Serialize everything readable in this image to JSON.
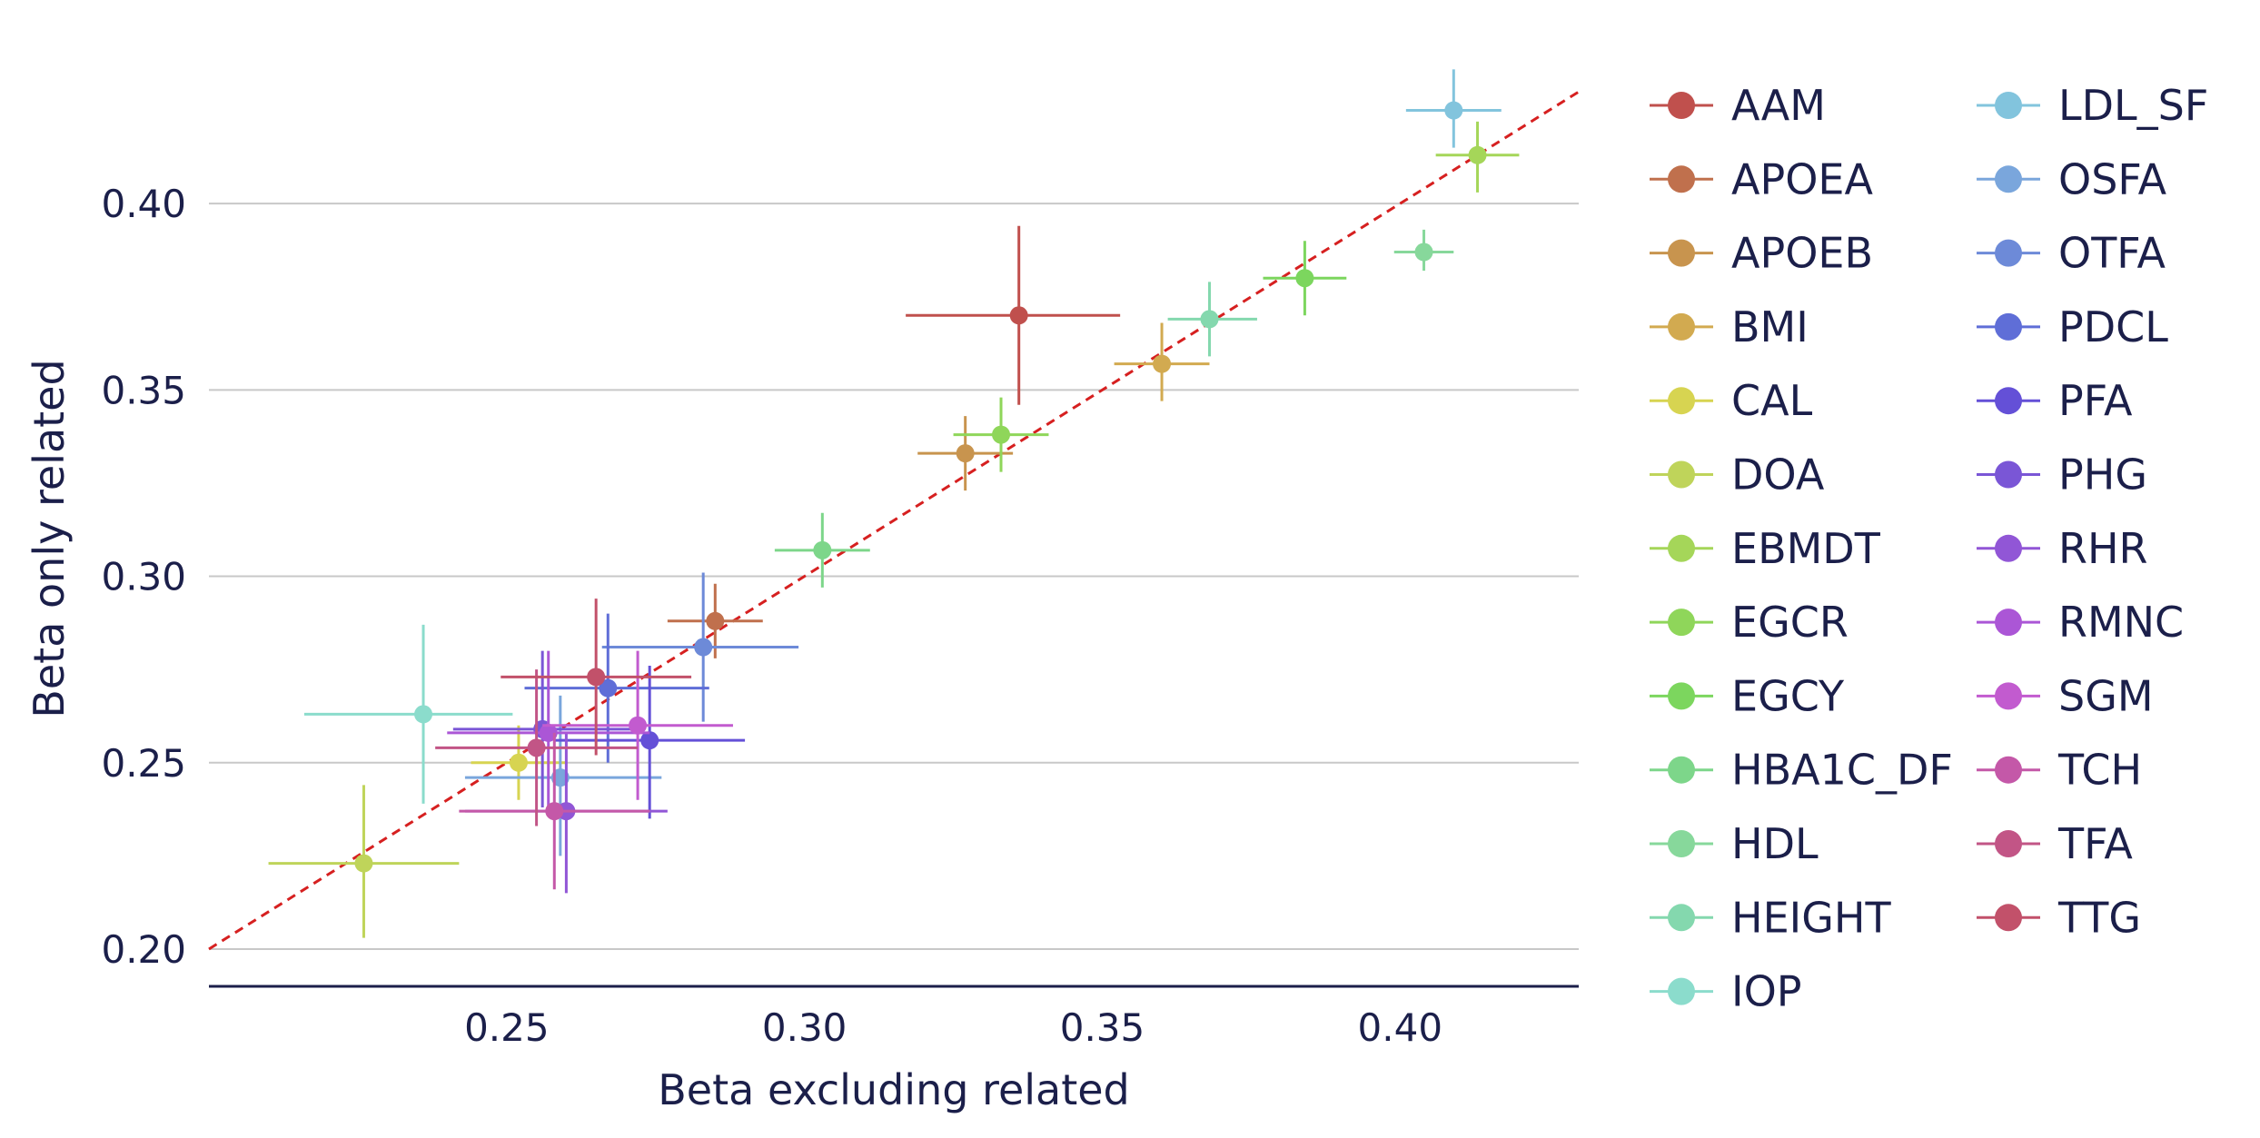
{
  "chart_data": {
    "type": "scatter",
    "title": "",
    "xlabel": "Beta excluding related",
    "ylabel": "Beta only related",
    "xlim": [
      0.2,
      0.43
    ],
    "ylim": [
      0.19,
      0.44
    ],
    "x_ticks": [
      0.25,
      0.3,
      0.35,
      0.4
    ],
    "x_tick_labels": [
      "0.25",
      "0.30",
      "0.35",
      "0.40"
    ],
    "y_ticks": [
      0.2,
      0.25,
      0.3,
      0.35,
      0.4
    ],
    "y_tick_labels": [
      "0.20",
      "0.25",
      "0.30",
      "0.35",
      "0.40"
    ],
    "grid": "horizontal",
    "legend_position": "right, two columns",
    "reference_line": {
      "style": "dashed",
      "color": "#d62020",
      "slope": 1,
      "intercept": 0
    },
    "series": [
      {
        "name": "AAM",
        "color": "#c0504d",
        "x": 0.336,
        "y": 0.37,
        "xerr": [
          0.317,
          0.353
        ],
        "yerr": [
          0.346,
          0.394
        ]
      },
      {
        "name": "APOEA",
        "color": "#c0704d",
        "x": 0.285,
        "y": 0.288,
        "xerr": [
          0.277,
          0.293
        ],
        "yerr": [
          0.278,
          0.298
        ]
      },
      {
        "name": "APOEB",
        "color": "#c8944e",
        "x": 0.327,
        "y": 0.333,
        "xerr": [
          0.319,
          0.335
        ],
        "yerr": [
          0.323,
          0.343
        ]
      },
      {
        "name": "BMI",
        "color": "#d2aa50",
        "x": 0.36,
        "y": 0.357,
        "xerr": [
          0.352,
          0.368
        ],
        "yerr": [
          0.347,
          0.368
        ]
      },
      {
        "name": "CAL",
        "color": "#d7d451",
        "x": 0.252,
        "y": 0.25,
        "xerr": [
          0.244,
          0.26
        ],
        "yerr": [
          0.24,
          0.26
        ]
      },
      {
        "name": "DOA",
        "color": "#bfd45a",
        "x": 0.226,
        "y": 0.223,
        "xerr": [
          0.21,
          0.242
        ],
        "yerr": [
          0.203,
          0.244
        ]
      },
      {
        "name": "EBMDT",
        "color": "#a5d659",
        "x": 0.413,
        "y": 0.413,
        "xerr": [
          0.406,
          0.42
        ],
        "yerr": [
          0.403,
          0.422
        ]
      },
      {
        "name": "EGCR",
        "color": "#8fd65a",
        "x": 0.333,
        "y": 0.338,
        "xerr": [
          0.325,
          0.341
        ],
        "yerr": [
          0.328,
          0.348
        ]
      },
      {
        "name": "EGCY",
        "color": "#7cd65e",
        "x": 0.384,
        "y": 0.38,
        "xerr": [
          0.377,
          0.391
        ],
        "yerr": [
          0.37,
          0.39
        ]
      },
      {
        "name": "HBA1C_DF",
        "color": "#7dd68a",
        "x": 0.303,
        "y": 0.307,
        "xerr": [
          0.295,
          0.311
        ],
        "yerr": [
          0.297,
          0.317
        ]
      },
      {
        "name": "HDL",
        "color": "#87d89b",
        "x": 0.404,
        "y": 0.387,
        "xerr": [
          0.399,
          0.409
        ],
        "yerr": [
          0.382,
          0.393
        ]
      },
      {
        "name": "HEIGHT",
        "color": "#84d8ae",
        "x": 0.368,
        "y": 0.369,
        "xerr": [
          0.361,
          0.376
        ],
        "yerr": [
          0.359,
          0.379
        ]
      },
      {
        "name": "IOP",
        "color": "#8bdccc",
        "x": 0.236,
        "y": 0.263,
        "xerr": [
          0.216,
          0.251
        ],
        "yerr": [
          0.239,
          0.287
        ]
      },
      {
        "name": "LDL_SF",
        "color": "#82c4dd",
        "x": 0.409,
        "y": 0.425,
        "xerr": [
          0.401,
          0.417
        ],
        "yerr": [
          0.415,
          0.436
        ]
      },
      {
        "name": "OSFA",
        "color": "#7aa6dc",
        "x": 0.259,
        "y": 0.246,
        "xerr": [
          0.243,
          0.276
        ],
        "yerr": [
          0.225,
          0.268
        ]
      },
      {
        "name": "OTFA",
        "color": "#6d8ad8",
        "x": 0.283,
        "y": 0.281,
        "xerr": [
          0.266,
          0.299
        ],
        "yerr": [
          0.261,
          0.301
        ]
      },
      {
        "name": "PDCL",
        "color": "#5f6ed7",
        "x": 0.267,
        "y": 0.27,
        "xerr": [
          0.253,
          0.284
        ],
        "yerr": [
          0.25,
          0.29
        ]
      },
      {
        "name": "PFA",
        "color": "#6450d7",
        "x": 0.274,
        "y": 0.256,
        "xerr": [
          0.258,
          0.29
        ],
        "yerr": [
          0.235,
          0.276
        ]
      },
      {
        "name": "PHG",
        "color": "#7a56d6",
        "x": 0.256,
        "y": 0.259,
        "xerr": [
          0.241,
          0.272
        ],
        "yerr": [
          0.238,
          0.28
        ]
      },
      {
        "name": "RHR",
        "color": "#9156d6",
        "x": 0.26,
        "y": 0.237,
        "xerr": [
          0.243,
          0.277
        ],
        "yerr": [
          0.215,
          0.258
        ]
      },
      {
        "name": "RMNC",
        "color": "#ab56d6",
        "x": 0.257,
        "y": 0.258,
        "xerr": [
          0.24,
          0.274
        ],
        "yerr": [
          0.236,
          0.28
        ]
      },
      {
        "name": "SGM",
        "color": "#c25bcf",
        "x": 0.272,
        "y": 0.26,
        "xerr": [
          0.256,
          0.288
        ],
        "yerr": [
          0.24,
          0.28
        ]
      },
      {
        "name": "TCH",
        "color": "#c458a8",
        "x": 0.258,
        "y": 0.237,
        "xerr": [
          0.242,
          0.274
        ],
        "yerr": [
          0.216,
          0.258
        ]
      },
      {
        "name": "TFA",
        "color": "#c25586",
        "x": 0.255,
        "y": 0.254,
        "xerr": [
          0.238,
          0.272
        ],
        "yerr": [
          0.233,
          0.275
        ]
      },
      {
        "name": "TTG",
        "color": "#c2516a",
        "x": 0.265,
        "y": 0.273,
        "xerr": [
          0.249,
          0.281
        ],
        "yerr": [
          0.252,
          0.294
        ]
      }
    ]
  }
}
